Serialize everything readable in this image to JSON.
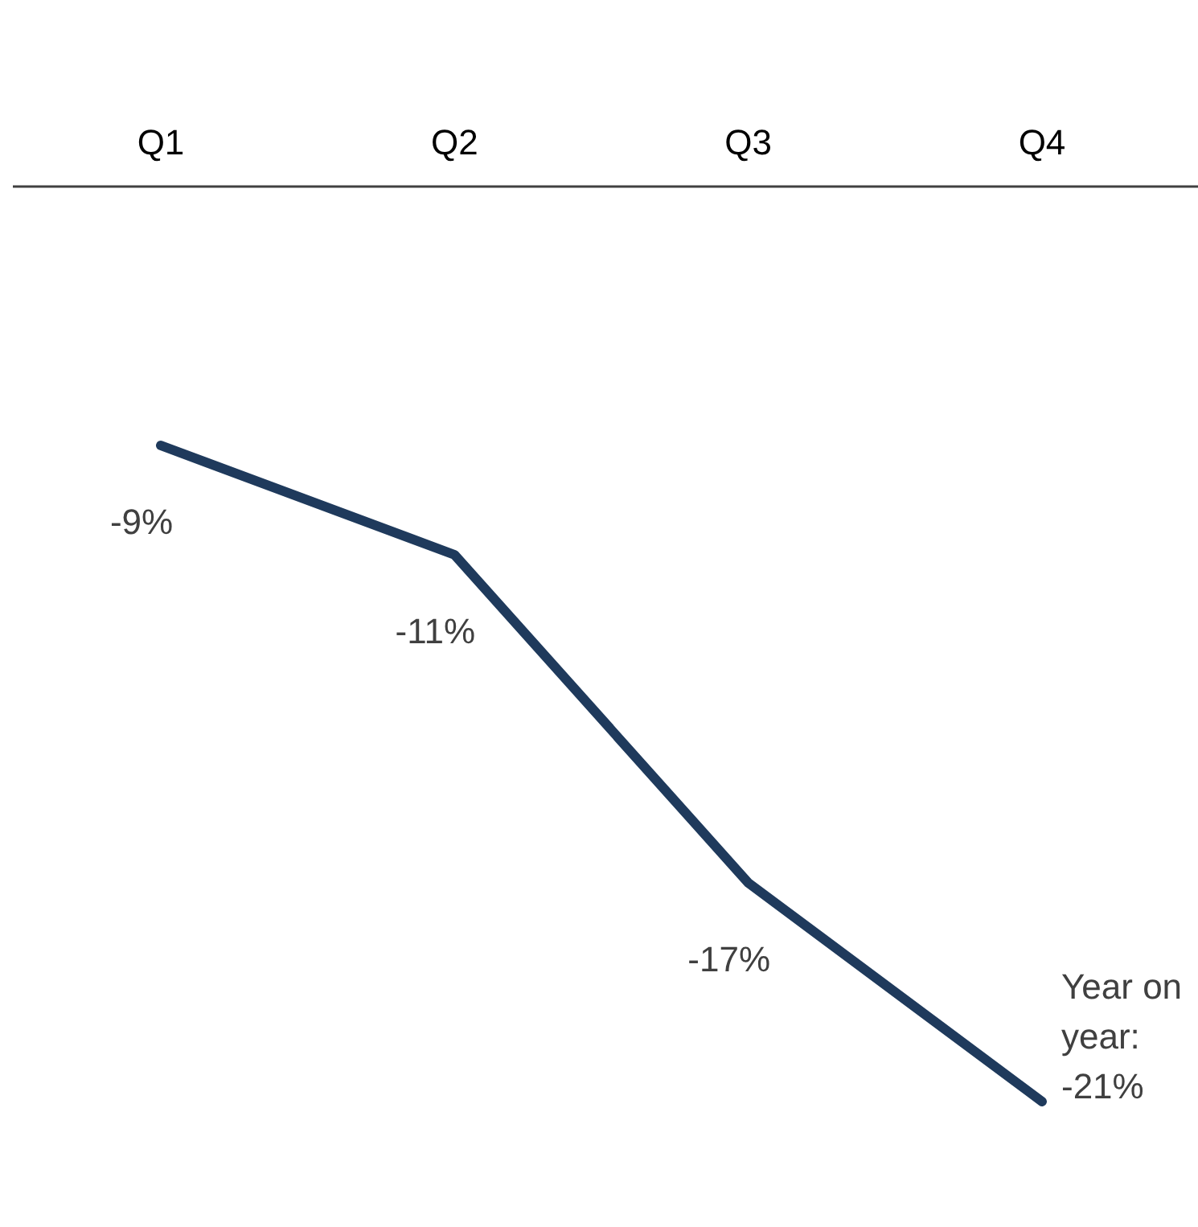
{
  "chart_data": {
    "type": "line",
    "categories": [
      "Q1",
      "Q2",
      "Q3",
      "Q4"
    ],
    "series": [
      {
        "color": "#1f3a5c",
        "values": [
          -9,
          -11,
          -17,
          -21
        ],
        "value_labels": [
          "-9%",
          "-11%",
          "-17%",
          "Year on year: -21%"
        ]
      }
    ]
  }
}
